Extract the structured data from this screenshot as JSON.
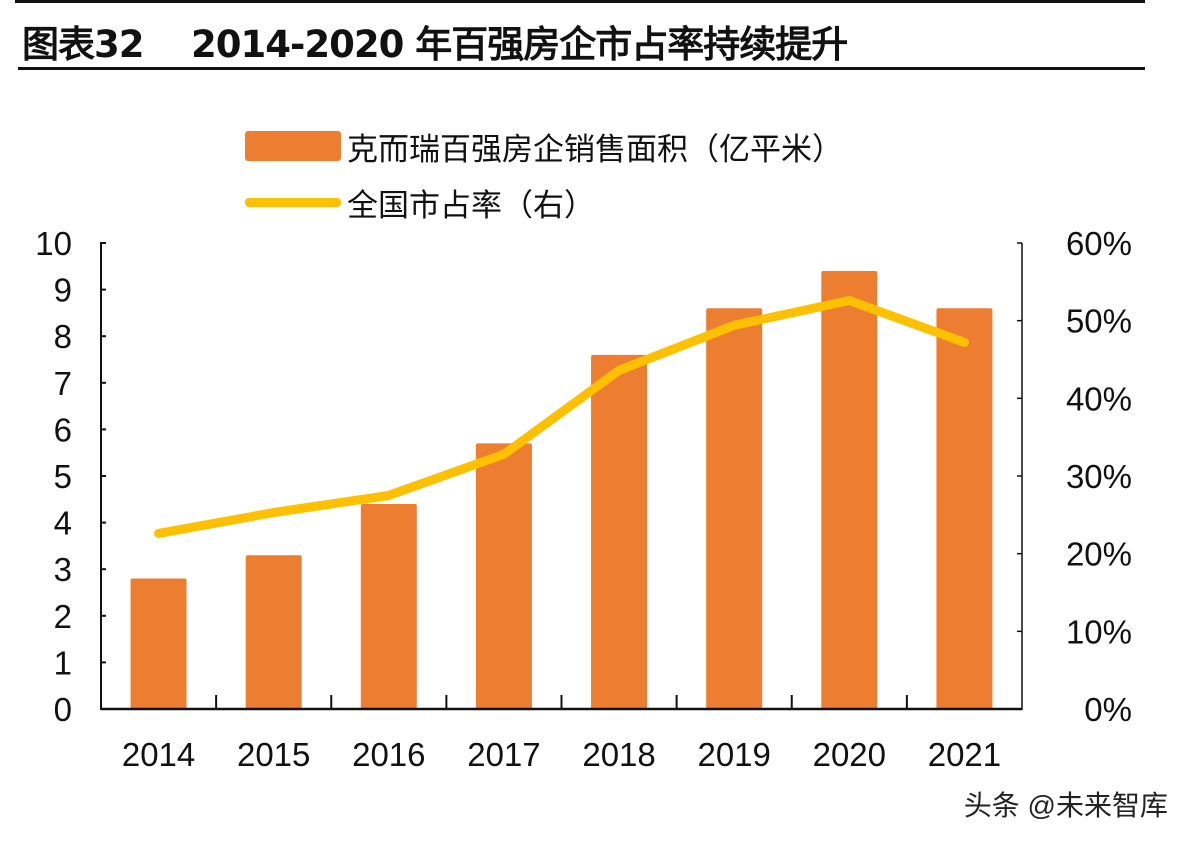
{
  "title": "图表32    2014-2020 年百强房企市占率持续提升",
  "watermark": "头条 @未来智库",
  "chart_data": {
    "type": "bar+line",
    "categories": [
      "2014",
      "2015",
      "2016",
      "2017",
      "2018",
      "2019",
      "2020",
      "2021"
    ],
    "series": [
      {
        "name": "克而瑞百强房企销售面积（亿平米）",
        "type": "bar",
        "axis": "left",
        "color": "#ED7D31",
        "values": [
          2.8,
          3.3,
          4.4,
          5.7,
          7.6,
          8.6,
          9.4,
          8.6
        ]
      },
      {
        "name": "全国市占率（右）",
        "type": "line",
        "axis": "right",
        "color": "#FFC000",
        "values": [
          22.6,
          25.3,
          27.5,
          32.8,
          43.6,
          49.4,
          52.6,
          47.2
        ]
      }
    ],
    "y_left": {
      "lim": [
        0,
        10
      ],
      "ticks": [
        "0",
        "1",
        "2",
        "3",
        "4",
        "5",
        "6",
        "7",
        "8",
        "9",
        "10"
      ]
    },
    "y_right": {
      "lim": [
        0,
        60
      ],
      "ticks": [
        "0%",
        "10%",
        "20%",
        "30%",
        "40%",
        "50%",
        "60%"
      ]
    },
    "grid": false,
    "legend_position": "top"
  }
}
